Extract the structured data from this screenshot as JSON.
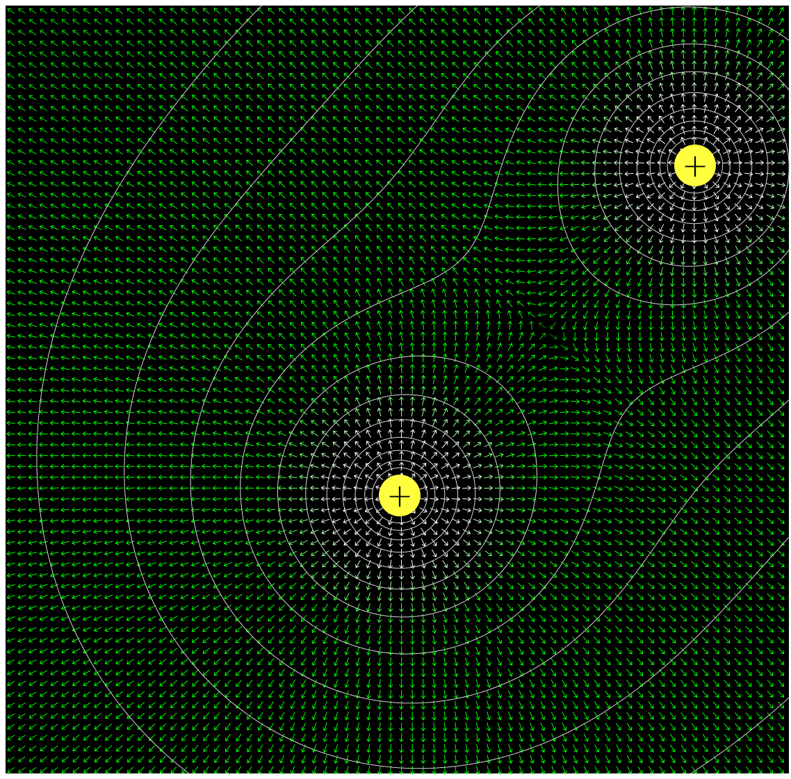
{
  "charges": [
    {
      "label": "+"
    },
    {
      "label": "+"
    }
  ]
}
